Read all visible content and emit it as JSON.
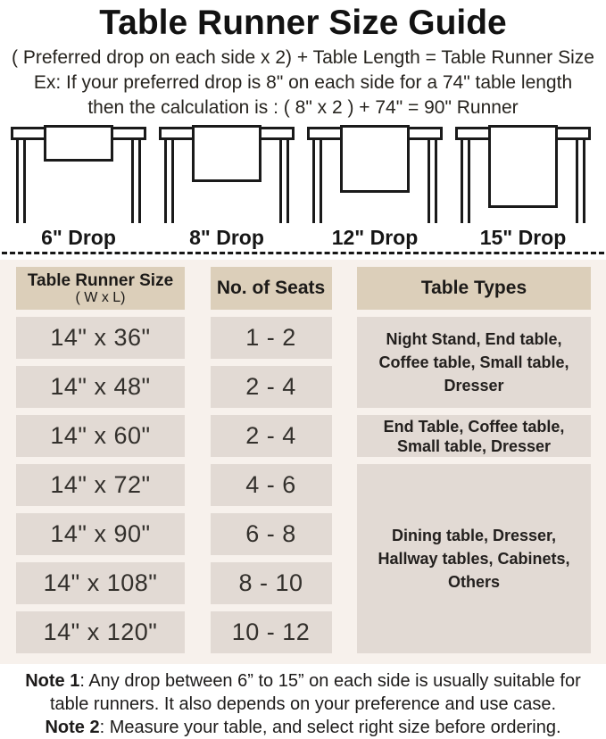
{
  "header": {
    "title": "Table Runner Size Guide",
    "formula": "( Preferred drop on each side x 2) + Table Length = Table Runner Size",
    "example_line1": "Ex: If your preferred drop is 8\" on each side for a 74\" table length",
    "example_line2": "then the calculation is : ( 8\" x 2 ) + 74\" = 90\" Runner"
  },
  "drop_diagrams": [
    {
      "label": "6\" Drop"
    },
    {
      "label": "8\" Drop"
    },
    {
      "label": "12\" Drop"
    },
    {
      "label": "15\" Drop"
    }
  ],
  "size_table": {
    "col1_header_line1": "Table Runner Size",
    "col1_header_line2": "( W x L)",
    "col2_header": "No. of Seats",
    "col3_header": "Table Types",
    "rows": [
      {
        "size": "14\" x 36\"",
        "seats": "1 - 2"
      },
      {
        "size": "14\" x 48\"",
        "seats": "2 - 4"
      },
      {
        "size": "14\" x 60\"",
        "seats": "2 - 4"
      },
      {
        "size": "14\" x 72\"",
        "seats": "4 - 6"
      },
      {
        "size": "14\" x 90\"",
        "seats": "6 - 8"
      },
      {
        "size": "14\" x 108\"",
        "seats": "8 - 10"
      },
      {
        "size": "14\" x 120\"",
        "seats": "10 - 12"
      }
    ],
    "table_types": [
      {
        "text": "Night Stand, End table, Coffee table, Small table, Dresser",
        "rows_spanned": 2
      },
      {
        "text": "End Table, Coffee table, Small table, Dresser",
        "rows_spanned": 1
      },
      {
        "text": "Dining table, Dresser, Hallway tables, Cabinets, Others",
        "rows_spanned": 4
      }
    ]
  },
  "notes": {
    "note1_label": "Note 1",
    "note1_line1_rest": ": Any drop between 6” to 15” on each side is usually suitable for",
    "note1_line2": "table runners. It also depends on your preference and use case.",
    "note2_label": "Note 2",
    "note2_rest": ": Measure your table, and select right size before ordering."
  },
  "colors": {
    "section_background": "#f7f1ec",
    "header_cell_background": "#dccfba",
    "data_cell_background": "#e2dad4",
    "diagram_line": "#1a1a1a",
    "text": "#22201e"
  }
}
